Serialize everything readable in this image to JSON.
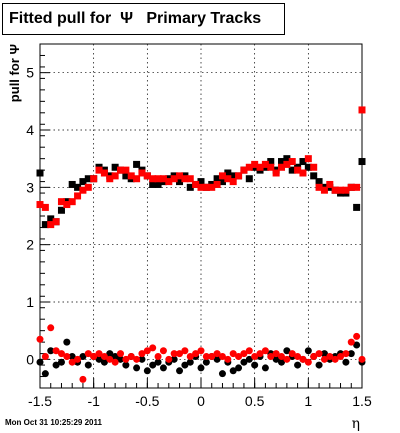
{
  "title": "Fitted pull for  Ψ   Primary Tracks",
  "timestamp": "Mon Oct 31 10:25:29 2011",
  "chart_data": {
    "type": "scatter",
    "title": "Fitted pull for  Ψ   Primary Tracks",
    "xlabel": "η",
    "ylabel": "pull for Ψ",
    "xlim": [
      -1.5,
      1.5
    ],
    "ylim": [
      -0.5,
      5.5
    ],
    "x_ticks": [
      -1.5,
      -1,
      -0.5,
      0,
      0.5,
      1,
      1.5
    ],
    "x_tick_labels": [
      "-1.5",
      "-1",
      "-0.5",
      "0",
      "0.5",
      "1",
      "1.5"
    ],
    "y_ticks": [
      0,
      1,
      2,
      3,
      4,
      5
    ],
    "y_tick_labels": [
      "0",
      "1",
      "2",
      "3",
      "4",
      "5"
    ],
    "grid": true,
    "colors": {
      "black": "#000000",
      "red": "#ff0000"
    },
    "series": [
      {
        "color": "black",
        "marker": "square",
        "x": [
          -1.5,
          -1.45,
          -1.4,
          -1.35,
          -1.3,
          -1.25,
          -1.2,
          -1.15,
          -1.1,
          -1.05,
          -1.0,
          -0.95,
          -0.9,
          -0.85,
          -0.8,
          -0.75,
          -0.7,
          -0.65,
          -0.6,
          -0.55,
          -0.5,
          -0.45,
          -0.4,
          -0.35,
          -0.3,
          -0.25,
          -0.2,
          -0.15,
          -0.1,
          -0.05,
          0.0,
          0.05,
          0.1,
          0.15,
          0.2,
          0.25,
          0.3,
          0.35,
          0.4,
          0.45,
          0.5,
          0.55,
          0.6,
          0.65,
          0.7,
          0.75,
          0.8,
          0.85,
          0.9,
          0.95,
          1.0,
          1.05,
          1.1,
          1.15,
          1.2,
          1.25,
          1.3,
          1.35,
          1.4,
          1.45,
          1.5
        ],
        "y": [
          3.25,
          2.35,
          2.45,
          2.4,
          2.6,
          2.75,
          3.05,
          3.0,
          3.1,
          3.15,
          3.15,
          3.35,
          3.3,
          3.2,
          3.35,
          3.3,
          3.2,
          3.15,
          3.4,
          3.3,
          3.2,
          3.05,
          3.05,
          3.1,
          3.15,
          3.2,
          3.1,
          3.2,
          3.0,
          3.05,
          3.1,
          3.0,
          3.05,
          3.15,
          3.1,
          3.25,
          3.2,
          3.2,
          3.3,
          3.15,
          3.35,
          3.3,
          3.35,
          3.45,
          3.3,
          3.45,
          3.5,
          3.3,
          3.35,
          3.45,
          3.35,
          3.2,
          3.1,
          3.0,
          3.0,
          2.95,
          2.9,
          2.9,
          3.0,
          2.65,
          3.45
        ]
      },
      {
        "color": "red",
        "marker": "square",
        "x": [
          -1.5,
          -1.45,
          -1.4,
          -1.35,
          -1.3,
          -1.25,
          -1.2,
          -1.15,
          -1.1,
          -1.05,
          -1.0,
          -0.95,
          -0.9,
          -0.85,
          -0.8,
          -0.75,
          -0.7,
          -0.65,
          -0.6,
          -0.55,
          -0.5,
          -0.45,
          -0.4,
          -0.35,
          -0.3,
          -0.25,
          -0.2,
          -0.15,
          -0.1,
          -0.05,
          0.0,
          0.05,
          0.1,
          0.15,
          0.2,
          0.25,
          0.3,
          0.35,
          0.4,
          0.45,
          0.5,
          0.55,
          0.6,
          0.65,
          0.7,
          0.75,
          0.8,
          0.85,
          0.9,
          0.95,
          1.0,
          1.05,
          1.1,
          1.15,
          1.2,
          1.25,
          1.3,
          1.35,
          1.4,
          1.45,
          1.5
        ],
        "y": [
          2.7,
          2.65,
          2.35,
          2.4,
          2.75,
          2.7,
          2.75,
          2.85,
          2.95,
          3.0,
          3.15,
          3.3,
          3.25,
          3.15,
          3.2,
          3.3,
          3.3,
          3.2,
          3.15,
          3.25,
          3.2,
          3.15,
          3.15,
          3.15,
          3.1,
          3.15,
          3.2,
          3.15,
          3.15,
          3.05,
          3.0,
          3.0,
          3.0,
          3.05,
          3.2,
          3.15,
          3.1,
          3.2,
          3.3,
          3.35,
          3.4,
          3.35,
          3.4,
          3.35,
          3.25,
          3.35,
          3.4,
          3.45,
          3.3,
          3.25,
          3.5,
          3.35,
          3.0,
          2.95,
          3.05,
          2.95,
          2.95,
          2.95,
          3.0,
          3.0,
          4.35
        ]
      },
      {
        "color": "black",
        "marker": "circle",
        "x": [
          -1.5,
          -1.45,
          -1.4,
          -1.35,
          -1.3,
          -1.25,
          -1.2,
          -1.15,
          -1.1,
          -1.05,
          -1.0,
          -0.95,
          -0.9,
          -0.85,
          -0.8,
          -0.75,
          -0.7,
          -0.65,
          -0.6,
          -0.55,
          -0.5,
          -0.45,
          -0.4,
          -0.35,
          -0.3,
          -0.25,
          -0.2,
          -0.15,
          -0.1,
          -0.05,
          0.0,
          0.05,
          0.1,
          0.15,
          0.2,
          0.25,
          0.3,
          0.35,
          0.4,
          0.45,
          0.5,
          0.55,
          0.6,
          0.65,
          0.7,
          0.75,
          0.8,
          0.85,
          0.9,
          0.95,
          1.0,
          1.05,
          1.1,
          1.15,
          1.2,
          1.25,
          1.3,
          1.35,
          1.4,
          1.45,
          1.5
        ],
        "y": [
          -0.05,
          -0.25,
          0.15,
          -0.1,
          -0.05,
          0.3,
          0.05,
          -0.05,
          0.05,
          -0.1,
          0.05,
          0.0,
          -0.05,
          0.1,
          0.05,
          0.0,
          -0.1,
          0.05,
          -0.15,
          0.0,
          -0.2,
          -0.1,
          -0.05,
          -0.15,
          -0.05,
          0.0,
          -0.2,
          -0.1,
          -0.05,
          0.05,
          -0.15,
          -0.05,
          0.05,
          0.0,
          -0.25,
          -0.05,
          -0.2,
          -0.15,
          -0.05,
          0.0,
          -0.1,
          0.05,
          -0.15,
          0.1,
          0.0,
          -0.05,
          0.15,
          0.05,
          -0.1,
          0.0,
          0.15,
          0.05,
          -0.1,
          0.1,
          0.0,
          0.05,
          0.1,
          -0.05,
          0.1,
          0.25,
          -0.05
        ]
      },
      {
        "color": "red",
        "marker": "circle",
        "x": [
          -1.5,
          -1.45,
          -1.4,
          -1.35,
          -1.3,
          -1.25,
          -1.2,
          -1.15,
          -1.1,
          -1.05,
          -1.0,
          -0.95,
          -0.9,
          -0.85,
          -0.8,
          -0.75,
          -0.7,
          -0.65,
          -0.6,
          -0.55,
          -0.5,
          -0.45,
          -0.4,
          -0.35,
          -0.3,
          -0.25,
          -0.2,
          -0.15,
          -0.1,
          -0.05,
          0.0,
          0.05,
          0.1,
          0.15,
          0.2,
          0.25,
          0.3,
          0.35,
          0.4,
          0.45,
          0.5,
          0.55,
          0.6,
          0.65,
          0.7,
          0.75,
          0.8,
          0.85,
          0.9,
          0.95,
          1.0,
          1.05,
          1.1,
          1.15,
          1.2,
          1.25,
          1.3,
          1.35,
          1.4,
          1.45,
          1.5
        ],
        "y": [
          0.35,
          0.05,
          0.55,
          0.15,
          0.1,
          0.05,
          -0.05,
          0.0,
          -0.35,
          0.1,
          0.05,
          0.1,
          0.05,
          0.0,
          -0.05,
          0.1,
          0.0,
          0.05,
          0.0,
          0.1,
          0.15,
          0.2,
          0.05,
          0.15,
          0.0,
          0.1,
          0.1,
          0.15,
          0.05,
          0.1,
          0.15,
          0.05,
          0.05,
          0.1,
          0.05,
          0.0,
          0.1,
          0.05,
          0.1,
          0.15,
          0.05,
          0.1,
          0.15,
          0.05,
          0.1,
          0.05,
          0.0,
          0.1,
          0.05,
          0.0,
          -0.05,
          0.05,
          0.1,
          0.0,
          0.05,
          0.0,
          0.05,
          0.1,
          0.3,
          0.4,
          0.0
        ]
      }
    ]
  }
}
